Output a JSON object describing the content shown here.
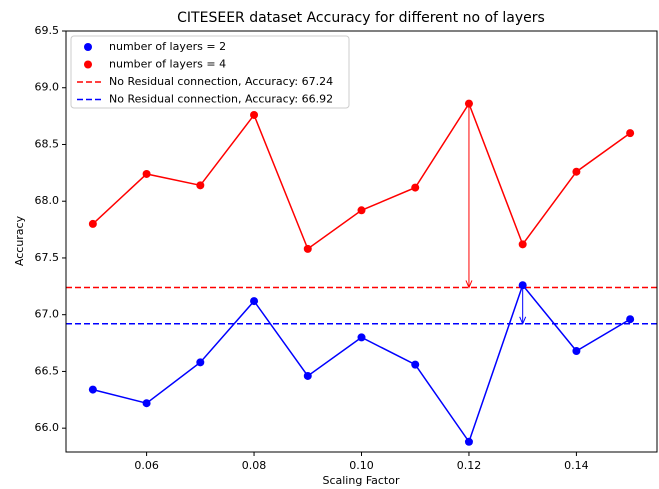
{
  "chart_data": {
    "type": "line",
    "title": "CITESEER dataset Accuracy for different no of layers",
    "xlabel": "Scaling Factor",
    "ylabel": "Accuracy",
    "x": [
      0.05,
      0.06,
      0.07,
      0.08,
      0.09,
      0.1,
      0.11,
      0.12,
      0.13,
      0.14,
      0.15
    ],
    "series": [
      {
        "name": "number of layers = 2",
        "color": "#0000ff",
        "values": [
          66.34,
          66.22,
          66.58,
          67.12,
          66.46,
          66.8,
          66.56,
          65.88,
          67.26,
          66.68,
          66.96
        ]
      },
      {
        "name": "number of layers = 4",
        "color": "#ff0000",
        "values": [
          67.8,
          68.24,
          68.14,
          68.76,
          67.58,
          67.92,
          68.12,
          68.86,
          67.62,
          68.26,
          68.6
        ]
      }
    ],
    "hlines": [
      {
        "name": "No Residual connection, Accuracy: 67.24",
        "color": "#ff0000",
        "value": 67.24
      },
      {
        "name": "No Residual connection, Accuracy: 66.92",
        "color": "#0000ff",
        "value": 66.92
      }
    ],
    "arrows": [
      {
        "color": "#ff0000",
        "x": 0.12,
        "from": 68.86,
        "to": 67.24
      },
      {
        "color": "#0000ff",
        "x": 0.13,
        "from": 67.26,
        "to": 66.92
      }
    ],
    "xlim": [
      0.045,
      0.155
    ],
    "ylim": [
      65.79,
      69.5
    ],
    "xticks": [
      0.06,
      0.08,
      {
        "value": 0.1,
        "label": "0.10"
      },
      0.12,
      0.14
    ],
    "yticks": [
      {
        "value": 66,
        "label": "66.0"
      },
      66.5,
      {
        "value": 67,
        "label": "67.0"
      },
      67.5,
      {
        "value": 68,
        "label": "68.0"
      },
      68.5,
      {
        "value": 69,
        "label": "69.0"
      },
      69.5
    ],
    "legend": "upper left",
    "grid": false
  }
}
